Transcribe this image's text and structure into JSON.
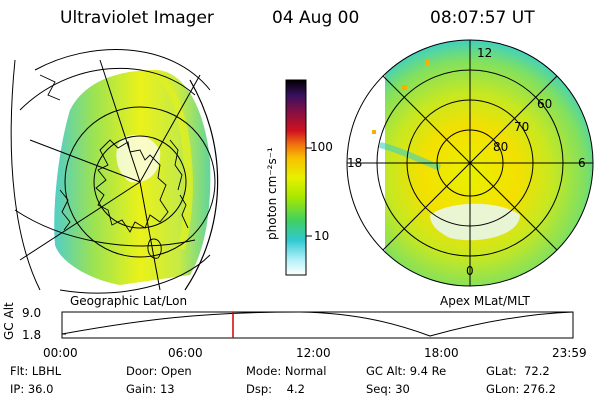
{
  "header": {
    "title": "Ultraviolet Imager",
    "date": "04 Aug 00",
    "time": "08:07:57 UT"
  },
  "panels": {
    "left_caption": "Geographic Lat/Lon",
    "right_caption": "Apex MLat/MLT"
  },
  "colorbar": {
    "unit_label": "photon cm⁻²s⁻¹",
    "ticks": [
      "100",
      "10"
    ],
    "colors": [
      "#000000",
      "#3a1060",
      "#8a1040",
      "#d01020",
      "#f07010",
      "#f8c000",
      "#e8f000",
      "#a8e800",
      "#40d060",
      "#30c8d0",
      "#b0f0f8",
      "#ffffff"
    ]
  },
  "polar_labels": {
    "mlt": [
      "12",
      "18",
      "6",
      "0"
    ],
    "mlat": [
      "60",
      "70",
      "80"
    ]
  },
  "altitude_strip": {
    "axis_label": "GC Alt",
    "y_ticks": [
      "9.0",
      "1.8"
    ],
    "x_ticks": [
      "00:00",
      "06:00",
      "12:00",
      "18:00",
      "23:59"
    ],
    "cursor_time": "08:07:57"
  },
  "info": {
    "flt": "Flt: LBHL",
    "ip": "IP: 36.0",
    "door": "Door: Open",
    "gain": "Gain: 13",
    "mode": "Mode: Normal",
    "dsp": "Dsp:    4.2",
    "gcalt": "GC Alt: 9.4 Re",
    "seq": "Seq: 30",
    "glat": "GLat:  72.2",
    "glon": "GLon: 276.2"
  }
}
